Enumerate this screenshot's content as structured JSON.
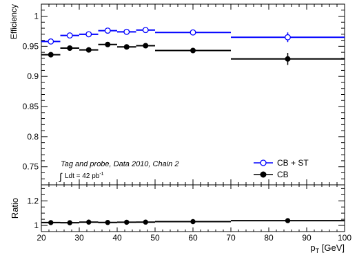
{
  "chart_data": [
    {
      "type": "scatter",
      "panel": "main",
      "ylabel": "Efficiency",
      "xlim": [
        20,
        100
      ],
      "ylim": [
        0.72,
        1.02
      ],
      "y_ticks": [
        "0.75",
        "0.8",
        "0.85",
        "0.9",
        "0.95",
        "1"
      ],
      "annotations": {
        "line1": "Tag and probe, Data 2010, Chain 2",
        "lumi_text": "Ldt = 42 pb",
        "lumi_sup": "-1"
      },
      "legend": {
        "placement": "bottom-right",
        "entries": [
          {
            "label": "CB + ST",
            "color": "#0000ff",
            "marker": "open-circle"
          },
          {
            "label": "CB",
            "color": "#000000",
            "marker": "filled-circle"
          }
        ]
      },
      "series": [
        {
          "name": "CB + ST",
          "color": "#0000ff",
          "marker": "open-circle",
          "points": [
            {
              "x_low": 20,
              "x_high": 25,
              "y": 0.958,
              "err": 0.002
            },
            {
              "x_low": 25,
              "x_high": 30,
              "y": 0.968,
              "err": 0.002
            },
            {
              "x_low": 30,
              "x_high": 35,
              "y": 0.97,
              "err": 0.002
            },
            {
              "x_low": 35,
              "x_high": 40,
              "y": 0.976,
              "err": 0.002
            },
            {
              "x_low": 40,
              "x_high": 45,
              "y": 0.974,
              "err": 0.002
            },
            {
              "x_low": 45,
              "x_high": 50,
              "y": 0.977,
              "err": 0.002
            },
            {
              "x_low": 50,
              "x_high": 70,
              "y": 0.973,
              "err": 0.002
            },
            {
              "x_low": 70,
              "x_high": 100,
              "y": 0.965,
              "err": 0.008
            }
          ]
        },
        {
          "name": "CB",
          "color": "#000000",
          "marker": "filled-circle",
          "points": [
            {
              "x_low": 20,
              "x_high": 25,
              "y": 0.936,
              "err": 0.004
            },
            {
              "x_low": 25,
              "x_high": 30,
              "y": 0.947,
              "err": 0.002
            },
            {
              "x_low": 30,
              "x_high": 35,
              "y": 0.944,
              "err": 0.002
            },
            {
              "x_low": 35,
              "x_high": 40,
              "y": 0.953,
              "err": 0.002
            },
            {
              "x_low": 40,
              "x_high": 45,
              "y": 0.949,
              "err": 0.002
            },
            {
              "x_low": 45,
              "x_high": 50,
              "y": 0.951,
              "err": 0.002
            },
            {
              "x_low": 50,
              "x_high": 70,
              "y": 0.943,
              "err": 0.002
            },
            {
              "x_low": 70,
              "x_high": 100,
              "y": 0.929,
              "err": 0.01
            }
          ]
        }
      ]
    },
    {
      "type": "scatter",
      "panel": "ratio",
      "ylabel": "Ratio",
      "xlabel_main": "p",
      "xlabel_sub": "T",
      "xlabel_unit": " [GeV]",
      "xlim": [
        20,
        100
      ],
      "ylim": [
        0.95,
        1.33
      ],
      "x_ticks": [
        "20",
        "30",
        "40",
        "50",
        "60",
        "70",
        "80",
        "90",
        "100"
      ],
      "y_ticks": [
        "1",
        "1.2"
      ],
      "series": [
        {
          "color": "#000000",
          "marker": "filled-circle",
          "points": [
            {
              "x_low": 20,
              "x_high": 25,
              "y": 1.023
            },
            {
              "x_low": 25,
              "x_high": 30,
              "y": 1.022
            },
            {
              "x_low": 30,
              "x_high": 35,
              "y": 1.027
            },
            {
              "x_low": 35,
              "x_high": 40,
              "y": 1.024
            },
            {
              "x_low": 40,
              "x_high": 45,
              "y": 1.026
            },
            {
              "x_low": 45,
              "x_high": 50,
              "y": 1.027
            },
            {
              "x_low": 50,
              "x_high": 70,
              "y": 1.031
            },
            {
              "x_low": 70,
              "x_high": 100,
              "y": 1.039
            }
          ]
        }
      ]
    }
  ]
}
